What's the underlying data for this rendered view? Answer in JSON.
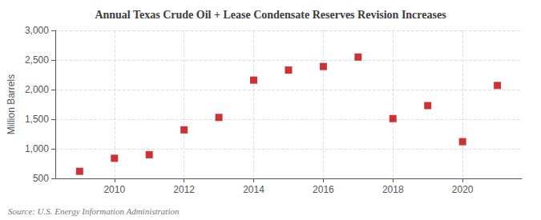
{
  "chart_data": {
    "type": "scatter",
    "title": "Annual Texas Crude Oil + Lease Condensate Reserves Revision Increases",
    "ylabel": "Million Barrels",
    "annotation": "Source: U.S. Energy Information Administration",
    "x": [
      2009,
      2010,
      2011,
      2012,
      2013,
      2014,
      2015,
      2016,
      2017,
      2018,
      2019,
      2020,
      2021
    ],
    "values": [
      620,
      840,
      900,
      1320,
      1530,
      2160,
      2330,
      2390,
      2550,
      1510,
      1730,
      1120,
      2070
    ],
    "color": "#c00000",
    "marker": "square",
    "xlim": [
      2008.3,
      2021.7
    ],
    "xticks": [
      2010,
      2012,
      2014,
      2016,
      2018,
      2020
    ],
    "ylim": [
      500,
      3000
    ],
    "yticks": [
      500,
      {
        "value": 1000,
        "label": "1,000"
      },
      {
        "value": 1500,
        "label": "1,500"
      },
      {
        "value": 2000,
        "label": "2,000"
      },
      {
        "value": 2500,
        "label": "2,500"
      },
      {
        "value": 3000,
        "label": "3,000"
      }
    ],
    "grid": true
  }
}
